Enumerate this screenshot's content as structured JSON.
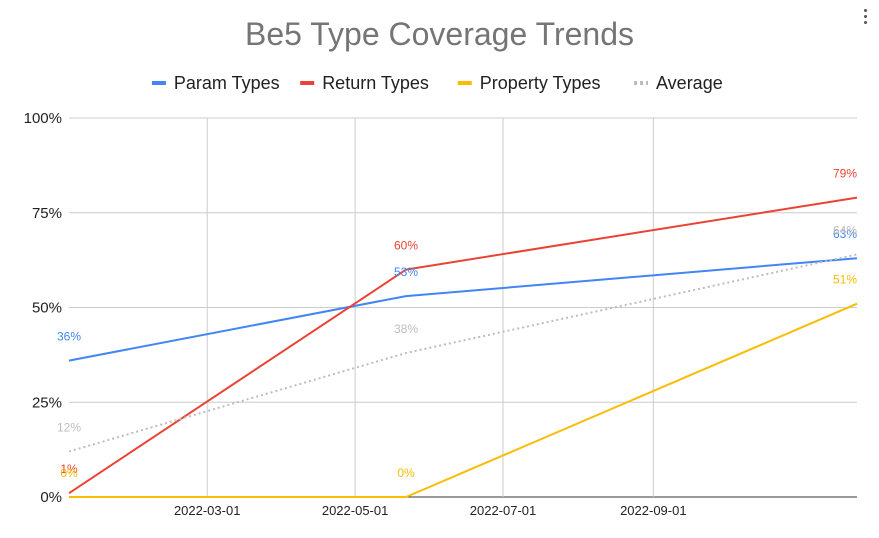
{
  "chart_data": {
    "type": "line",
    "title": "Be5 Type Coverage Trends",
    "xlabel": "",
    "ylabel": "",
    "x": [
      "2022-01-03",
      "2022-05-22",
      "2022-11-24"
    ],
    "series": [
      {
        "name": "Param Types",
        "color": "#4285f4",
        "style": "solid",
        "values": [
          36,
          53,
          63
        ],
        "labels": [
          "36%",
          "53%",
          "63%"
        ]
      },
      {
        "name": "Return Types",
        "color": "#ea4335",
        "style": "solid",
        "values": [
          1,
          60,
          79
        ],
        "labels": [
          "1%",
          "60%",
          "79%"
        ]
      },
      {
        "name": "Property Types",
        "color": "#fbbc04",
        "style": "solid",
        "values": [
          0,
          0,
          51
        ],
        "labels": [
          "0%",
          "0%",
          "51%"
        ]
      },
      {
        "name": "Average",
        "color": "#bdbdbd",
        "style": "dotted",
        "values": [
          12,
          38,
          64
        ],
        "labels": [
          "12%",
          "38%",
          "64%"
        ]
      }
    ],
    "ylim": [
      0,
      100
    ],
    "y_ticks": [
      {
        "value": 0,
        "label": "0%"
      },
      {
        "value": 25,
        "label": "25%"
      },
      {
        "value": 50,
        "label": "50%"
      },
      {
        "value": 75,
        "label": "75%"
      },
      {
        "value": 100,
        "label": "100%"
      }
    ],
    "x_ticks": [
      "2022-03-01",
      "2022-05-01",
      "2022-07-01",
      "2022-09-01"
    ],
    "legend_position": "top",
    "grid": true
  }
}
